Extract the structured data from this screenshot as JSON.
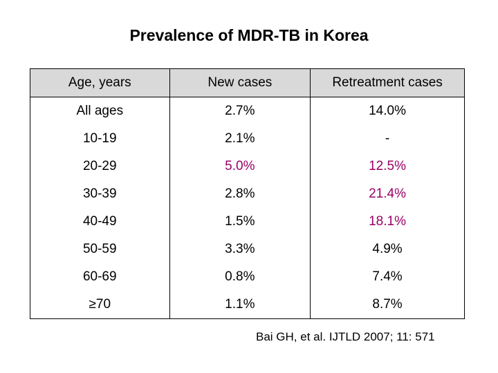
{
  "title": "Prevalence of MDR-TB in Korea",
  "table": {
    "headers": [
      "Age, years",
      "New cases",
      "Retreatment cases"
    ],
    "rows": [
      {
        "age": "All ages",
        "new": "2.7%",
        "retreatment": "14.0%"
      },
      {
        "age": "10-19",
        "new": "2.1%",
        "retreatment": "-"
      },
      {
        "age": "20-29",
        "new": "5.0%",
        "retreatment": "12.5%"
      },
      {
        "age": "30-39",
        "new": "2.8%",
        "retreatment": "21.4%"
      },
      {
        "age": "40-49",
        "new": "1.5%",
        "retreatment": "18.1%"
      },
      {
        "age": "50-59",
        "new": "3.3%",
        "retreatment": "4.9%"
      },
      {
        "age": "60-69",
        "new": "0.8%",
        "retreatment": "7.4%"
      },
      {
        "age": "≥70",
        "new": "1.1%",
        "retreatment": "8.7%"
      }
    ]
  },
  "citation": "Bai GH, et al. IJTLD 2007; 11: 571",
  "colors": {
    "highlight": "#990066",
    "header_bg": "#d9d9d9"
  }
}
